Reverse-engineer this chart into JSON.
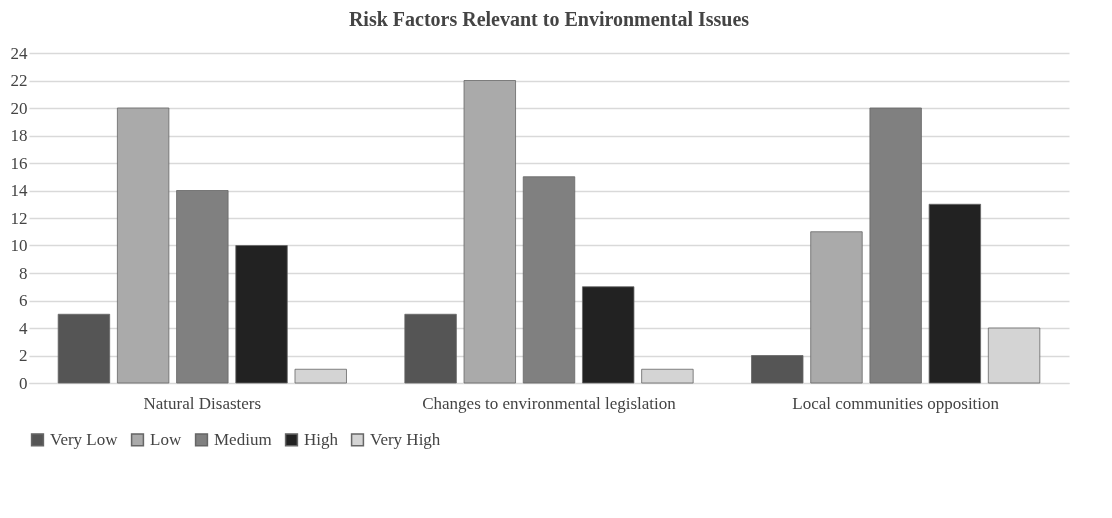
{
  "chart_data": {
    "type": "bar",
    "title": "Risk Factors Relevant to Environmental Issues",
    "categories": [
      "Natural Disasters",
      "Changes to environmental legislation",
      "Local communities opposition"
    ],
    "series": [
      {
        "name": "Very Low",
        "color": "#555555",
        "values": [
          5,
          5,
          2
        ]
      },
      {
        "name": "Low",
        "color": "#aaaaaa",
        "values": [
          20,
          22,
          11
        ]
      },
      {
        "name": "Medium",
        "color": "#808080",
        "values": [
          14,
          15,
          20
        ]
      },
      {
        "name": "High",
        "color": "#222222",
        "values": [
          10,
          7,
          13
        ]
      },
      {
        "name": "Very High",
        "color": "#d4d4d4",
        "values": [
          1,
          1,
          4
        ]
      }
    ],
    "ylim": [
      0,
      24
    ],
    "yticks": [
      0,
      2,
      4,
      6,
      8,
      10,
      12,
      14,
      16,
      18,
      20,
      22,
      24
    ],
    "grid": "y",
    "legend": "bottom"
  }
}
